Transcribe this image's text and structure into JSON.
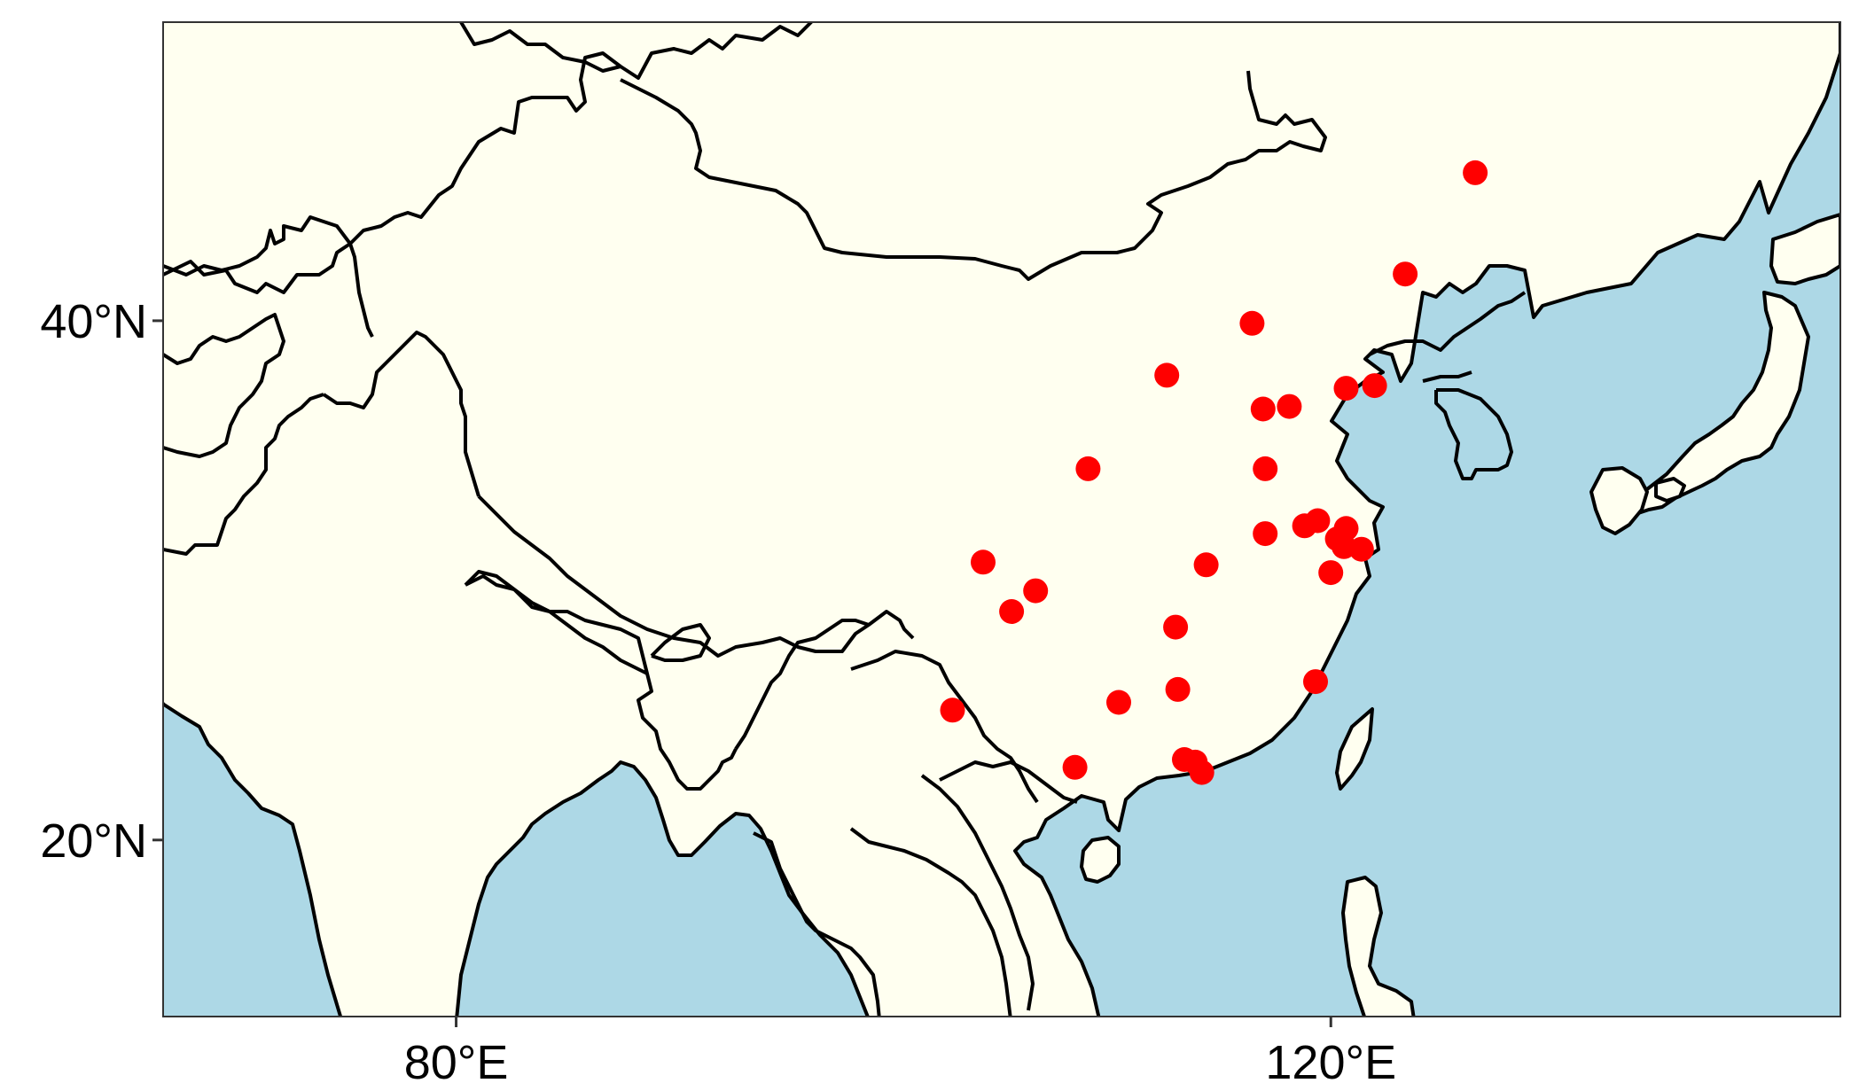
{
  "map": {
    "colors": {
      "ocean": "#add8e6",
      "land": "#fffff0",
      "border": "#000000",
      "marker": "#ff0000",
      "frame": "#333333"
    },
    "extent": {
      "lon": [
        66.6,
        143.3
      ],
      "lat": [
        13.2,
        51.5
      ]
    },
    "axes": {
      "x_ticks": [
        {
          "value": 80,
          "label": "80°E"
        },
        {
          "value": 120,
          "label": "120°E"
        }
      ],
      "y_ticks": [
        {
          "value": 40,
          "label": "40°N"
        },
        {
          "value": 20,
          "label": "20°N"
        }
      ]
    },
    "points": [
      {
        "lon": 126.6,
        "lat": 45.7
      },
      {
        "lon": 123.4,
        "lat": 41.8
      },
      {
        "lon": 116.4,
        "lat": 39.9
      },
      {
        "lon": 112.5,
        "lat": 37.9
      },
      {
        "lon": 120.7,
        "lat": 37.4
      },
      {
        "lon": 122.0,
        "lat": 37.5
      },
      {
        "lon": 116.9,
        "lat": 36.6
      },
      {
        "lon": 118.1,
        "lat": 36.7
      },
      {
        "lon": 108.9,
        "lat": 34.3
      },
      {
        "lon": 117.0,
        "lat": 34.3
      },
      {
        "lon": 117.0,
        "lat": 31.8
      },
      {
        "lon": 118.8,
        "lat": 32.1
      },
      {
        "lon": 119.4,
        "lat": 32.3
      },
      {
        "lon": 120.3,
        "lat": 31.6
      },
      {
        "lon": 120.6,
        "lat": 31.3
      },
      {
        "lon": 120.7,
        "lat": 32.0
      },
      {
        "lon": 121.4,
        "lat": 31.2
      },
      {
        "lon": 120.0,
        "lat": 30.3
      },
      {
        "lon": 114.3,
        "lat": 30.6
      },
      {
        "lon": 104.1,
        "lat": 30.7
      },
      {
        "lon": 106.5,
        "lat": 29.6
      },
      {
        "lon": 105.4,
        "lat": 28.8
      },
      {
        "lon": 112.9,
        "lat": 28.2
      },
      {
        "lon": 119.3,
        "lat": 26.1
      },
      {
        "lon": 102.7,
        "lat": 25.0
      },
      {
        "lon": 110.3,
        "lat": 25.3
      },
      {
        "lon": 113.0,
        "lat": 25.8
      },
      {
        "lon": 108.3,
        "lat": 22.8
      },
      {
        "lon": 113.3,
        "lat": 23.1
      },
      {
        "lon": 113.8,
        "lat": 23.0
      },
      {
        "lon": 114.1,
        "lat": 22.6
      }
    ]
  }
}
